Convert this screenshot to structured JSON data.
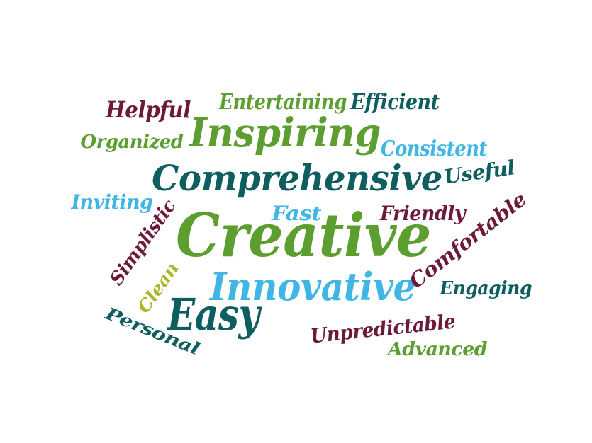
{
  "palette": {
    "maroon": "#6d1a3a",
    "green": "#5c9e2f",
    "teal": "#0f5e5f",
    "sky": "#3fb6e3",
    "olive": "#a9b62a"
  },
  "words": [
    {
      "text": "Creative",
      "color": "maroon_none_green"
    },
    {
      "text": "Comprehensive"
    },
    {
      "text": "Inspiring"
    },
    {
      "text": "Innovative"
    },
    {
      "text": "Easy"
    },
    {
      "text": "Helpful"
    },
    {
      "text": "Entertaining"
    },
    {
      "text": "Efficient"
    },
    {
      "text": "Organized"
    },
    {
      "text": "Consistent"
    },
    {
      "text": "Useful"
    },
    {
      "text": "Inviting"
    },
    {
      "text": "Fast"
    },
    {
      "text": "Friendly"
    },
    {
      "text": "Simplistic"
    },
    {
      "text": "Comfortable"
    },
    {
      "text": "Clean"
    },
    {
      "text": "Engaging"
    },
    {
      "text": "Personal"
    },
    {
      "text": "Unpredictable"
    },
    {
      "text": "Advanced"
    }
  ]
}
